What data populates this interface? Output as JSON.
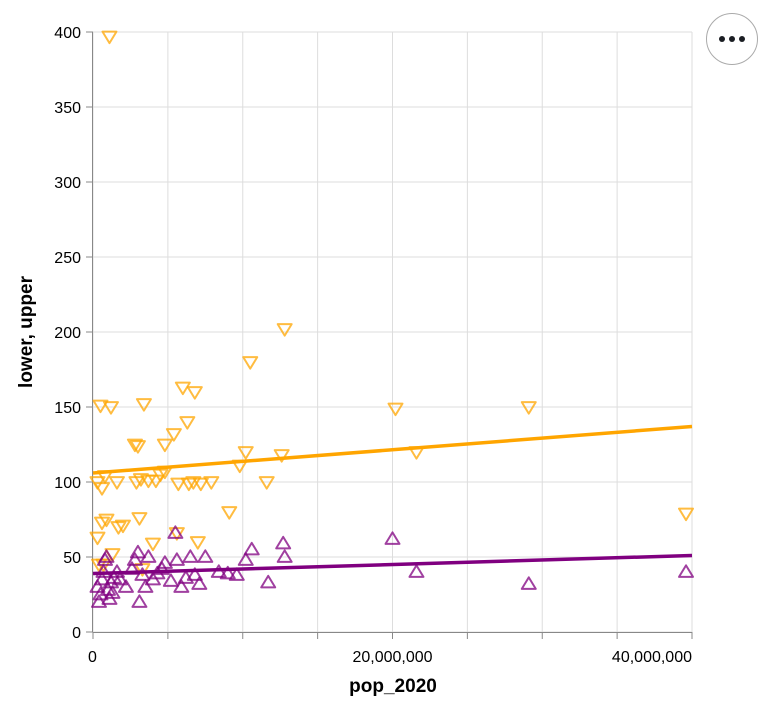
{
  "menu": {
    "icon": "ellipsis-icon"
  },
  "chart_data": {
    "type": "scatter",
    "xlabel": "pop_2020",
    "ylabel": "lower, upper",
    "xlim": [
      0,
      40000000
    ],
    "ylim": [
      0,
      400
    ],
    "x_ticks": [
      0,
      5000000,
      10000000,
      15000000,
      20000000,
      25000000,
      30000000,
      35000000,
      40000000
    ],
    "x_tick_labels": [
      {
        "value": 0,
        "label": "0"
      },
      {
        "value": 20000000,
        "label": "20,000,000"
      },
      {
        "value": 40000000,
        "label": "40,000,000"
      }
    ],
    "y_ticks": [
      0,
      50,
      100,
      150,
      200,
      250,
      300,
      350,
      400
    ],
    "y_tick_labels": [
      "0",
      "50",
      "100",
      "150",
      "200",
      "250",
      "300",
      "350",
      "400"
    ],
    "grid": true,
    "series": [
      {
        "color": "#ffa500",
        "marker": "triangle-down",
        "trend": {
          "x": [
            0,
            40000000
          ],
          "y": [
            106,
            137
          ]
        },
        "points": [
          [
            1100000,
            397
          ],
          [
            500000,
            151
          ],
          [
            1200000,
            150
          ],
          [
            3400000,
            152
          ],
          [
            6000000,
            163
          ],
          [
            6300000,
            140
          ],
          [
            6800000,
            160
          ],
          [
            2800000,
            125
          ],
          [
            3000000,
            124
          ],
          [
            4800000,
            125
          ],
          [
            5400000,
            132
          ],
          [
            10500000,
            180
          ],
          [
            12800000,
            202
          ],
          [
            10200000,
            120
          ],
          [
            9800000,
            111
          ],
          [
            12600000,
            118
          ],
          [
            11600000,
            100
          ],
          [
            20200000,
            149
          ],
          [
            21600000,
            120
          ],
          [
            29100000,
            150
          ],
          [
            39600000,
            79
          ],
          [
            300000,
            100
          ],
          [
            600000,
            96
          ],
          [
            800000,
            104
          ],
          [
            1600000,
            100
          ],
          [
            2900000,
            100
          ],
          [
            3200000,
            102
          ],
          [
            3700000,
            101
          ],
          [
            4200000,
            101
          ],
          [
            4500000,
            105
          ],
          [
            4800000,
            107
          ],
          [
            5700000,
            99
          ],
          [
            6400000,
            99
          ],
          [
            6700000,
            100
          ],
          [
            7200000,
            99
          ],
          [
            7900000,
            100
          ],
          [
            9100000,
            80
          ],
          [
            300000,
            63
          ],
          [
            600000,
            73
          ],
          [
            900000,
            75
          ],
          [
            1700000,
            70
          ],
          [
            2000000,
            71
          ],
          [
            3100000,
            76
          ],
          [
            4000000,
            59
          ],
          [
            5600000,
            66
          ],
          [
            7000000,
            60
          ],
          [
            400000,
            45
          ],
          [
            700000,
            45
          ],
          [
            1300000,
            52
          ],
          [
            3300000,
            42
          ]
        ]
      },
      {
        "color": "#800080",
        "marker": "triangle-up",
        "trend": {
          "x": [
            0,
            40000000
          ],
          "y": [
            39,
            51
          ]
        },
        "points": [
          [
            5500000,
            66
          ],
          [
            12700000,
            59
          ],
          [
            10600000,
            55
          ],
          [
            12800000,
            50
          ],
          [
            20000000,
            62
          ],
          [
            21600000,
            40
          ],
          [
            29100000,
            32
          ],
          [
            39600000,
            40
          ],
          [
            300000,
            30
          ],
          [
            400000,
            20
          ],
          [
            500000,
            25
          ],
          [
            600000,
            35
          ],
          [
            700000,
            40
          ],
          [
            800000,
            48
          ],
          [
            900000,
            50
          ],
          [
            1000000,
            28
          ],
          [
            1100000,
            22
          ],
          [
            1200000,
            33
          ],
          [
            1300000,
            26
          ],
          [
            1400000,
            36
          ],
          [
            1600000,
            40
          ],
          [
            1800000,
            35
          ],
          [
            2200000,
            30
          ],
          [
            2600000,
            42
          ],
          [
            2800000,
            48
          ],
          [
            3000000,
            53
          ],
          [
            3100000,
            20
          ],
          [
            3300000,
            38
          ],
          [
            3500000,
            30
          ],
          [
            3700000,
            50
          ],
          [
            4000000,
            35
          ],
          [
            4300000,
            39
          ],
          [
            4600000,
            42
          ],
          [
            4800000,
            46
          ],
          [
            5200000,
            34
          ],
          [
            5600000,
            48
          ],
          [
            5900000,
            30
          ],
          [
            6200000,
            36
          ],
          [
            6500000,
            50
          ],
          [
            6800000,
            38
          ],
          [
            7100000,
            32
          ],
          [
            7500000,
            50
          ],
          [
            8400000,
            40
          ],
          [
            9000000,
            39
          ],
          [
            9600000,
            38
          ],
          [
            10200000,
            48
          ],
          [
            11700000,
            33
          ]
        ]
      }
    ]
  }
}
